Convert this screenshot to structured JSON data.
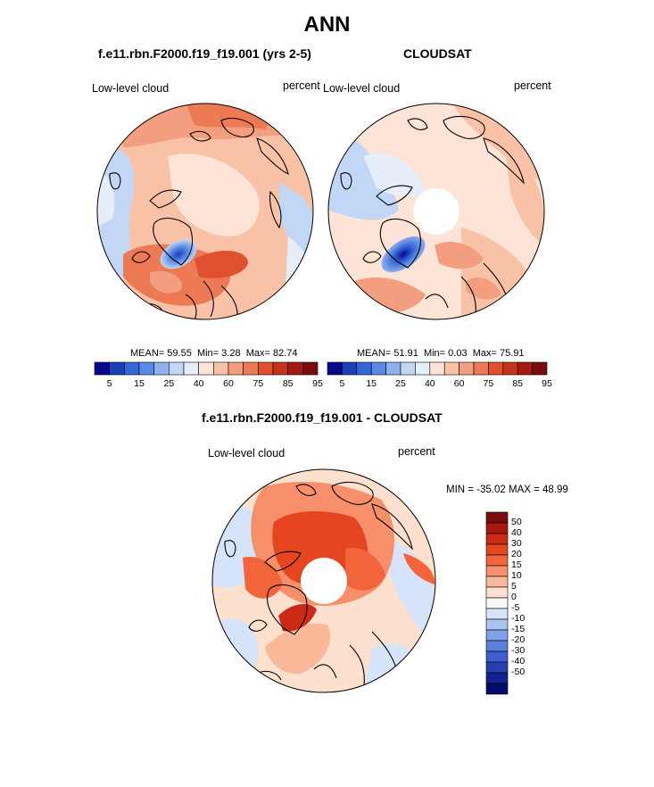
{
  "main_title": "ANN",
  "panels": {
    "left": {
      "title": "f.e11.rbn.F2000.f19_f19.001 (yrs 2-5)",
      "var_label": "Low-level cloud",
      "units": "percent",
      "mean_label": "MEAN=",
      "mean": "59.55",
      "min_label": "Min=",
      "min": "3.28",
      "max_label": "Max=",
      "max": "82.74"
    },
    "right": {
      "title": "CLOUDSAT",
      "var_label": "Low-level cloud",
      "units": "percent",
      "mean_label": "MEAN=",
      "mean": "51.91",
      "min_label": "Min=",
      "min": "0.03",
      "max_label": "Max=",
      "max": "75.91"
    },
    "diff": {
      "title": "f.e11.rbn.F2000.f19_f19.001 - CLOUDSAT",
      "var_label": "Low-level cloud",
      "units": "percent",
      "minmax": "MIN = -35.02 MAX =  48.99"
    }
  },
  "abs_colorbar": {
    "colors": [
      "#08088a",
      "#1b3fb5",
      "#3366d6",
      "#5b8ae6",
      "#8fb0ef",
      "#c2d6f5",
      "#e6eefa",
      "#fde4d6",
      "#f9c2a6",
      "#f39f7f",
      "#ec7a55",
      "#e0502e",
      "#c4321a",
      "#a31a12",
      "#7a0c0c"
    ],
    "tick_labels": [
      "5",
      "15",
      "25",
      "40",
      "60",
      "75",
      "85",
      "95"
    ]
  },
  "diff_colorbar": {
    "colors": [
      "#7a0c0c",
      "#a8180e",
      "#cc2a14",
      "#e6461f",
      "#f2653b",
      "#f7906a",
      "#fab99a",
      "#fde0cd",
      "#f7f7f7",
      "#d6e4fa",
      "#a9c4f2",
      "#7fa2e8",
      "#5a82dd",
      "#3b60cd",
      "#2640b3",
      "#12238f",
      "#050a6e"
    ],
    "tick_labels": [
      "50",
      "40",
      "30",
      "20",
      "15",
      "10",
      "5",
      "0",
      "-5",
      "-10",
      "-15",
      "-20",
      "-30",
      "-40",
      "-50"
    ]
  }
}
